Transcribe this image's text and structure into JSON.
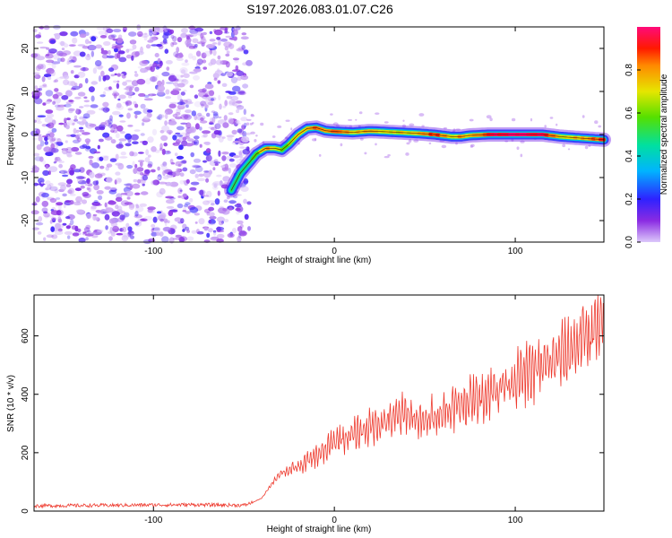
{
  "title": "S197.2026.083.01.07.C26",
  "chart_data": [
    {
      "type": "heatmap",
      "xlabel": "Height of straight line (km)",
      "ylabel": "Frequency (Hz)",
      "xlim": [
        -166,
        149
      ],
      "ylim": [
        -25,
        25
      ],
      "xticks": [
        -100,
        0,
        100
      ],
      "yticks": [
        -20,
        -10,
        0,
        10,
        20
      ],
      "noise_region_x": [
        -166,
        -52
      ],
      "ridge": [
        {
          "x": -57,
          "f": -13,
          "amp": 0.4
        },
        {
          "x": -52,
          "f": -9,
          "amp": 0.42
        },
        {
          "x": -47,
          "f": -6.5,
          "amp": 0.5
        },
        {
          "x": -43,
          "f": -4.5,
          "amp": 0.6
        },
        {
          "x": -38,
          "f": -3.2,
          "amp": 0.85
        },
        {
          "x": -33,
          "f": -3.2,
          "amp": 0.7
        },
        {
          "x": -29,
          "f": -3.6,
          "amp": 0.55
        },
        {
          "x": -25,
          "f": -2.2,
          "amp": 0.6
        },
        {
          "x": -20,
          "f": 0.0,
          "amp": 0.7
        },
        {
          "x": -15,
          "f": 1.4,
          "amp": 0.8
        },
        {
          "x": -10,
          "f": 1.6,
          "amp": 0.85
        },
        {
          "x": -5,
          "f": 0.9,
          "amp": 0.8
        },
        {
          "x": 0,
          "f": 0.7,
          "amp": 0.9
        },
        {
          "x": 10,
          "f": 0.5,
          "amp": 0.7
        },
        {
          "x": 20,
          "f": 0.8,
          "amp": 0.75
        },
        {
          "x": 35,
          "f": 0.5,
          "amp": 0.7
        },
        {
          "x": 45,
          "f": 0.3,
          "amp": 0.7
        },
        {
          "x": 55,
          "f": 0.0,
          "amp": 0.9
        },
        {
          "x": 65,
          "f": -0.5,
          "amp": 0.7
        },
        {
          "x": 70,
          "f": -0.5,
          "amp": 0.8
        },
        {
          "x": 75,
          "f": -0.2,
          "amp": 0.7
        },
        {
          "x": 85,
          "f": 0.0,
          "amp": 0.95
        },
        {
          "x": 100,
          "f": 0.0,
          "amp": 1.0
        },
        {
          "x": 115,
          "f": 0.0,
          "amp": 0.95
        },
        {
          "x": 125,
          "f": -0.5,
          "amp": 0.7
        },
        {
          "x": 135,
          "f": -0.8,
          "amp": 0.75
        },
        {
          "x": 149,
          "f": -1.2,
          "amp": 0.9
        }
      ],
      "colorbar": {
        "label": "Normalized spectral amplitude",
        "range": [
          0,
          1
        ],
        "ticks": [
          "0.0",
          "0.2",
          "0.4",
          "0.6",
          "0.8"
        ]
      }
    },
    {
      "type": "line",
      "xlabel": "Height of straight line (km)",
      "ylabel": "SNR (10 * v/v)",
      "xlim": [
        -166,
        149
      ],
      "ylim": [
        0,
        740
      ],
      "xticks": [
        -100,
        0,
        100
      ],
      "yticks": [
        0,
        200,
        400,
        600
      ],
      "color": "#ee3a2e",
      "series": [
        {
          "name": "SNR",
          "x": [
            -166,
            -120,
            -80,
            -50,
            -45,
            -40,
            -35,
            -30,
            -25,
            -20,
            -15,
            -10,
            -5,
            0,
            10,
            20,
            30,
            40,
            50,
            55,
            60,
            70,
            80,
            90,
            100,
            110,
            120,
            130,
            140,
            149
          ],
          "y": [
            18,
            20,
            22,
            20,
            30,
            45,
            90,
            130,
            140,
            150,
            170,
            190,
            205,
            240,
            260,
            290,
            310,
            335,
            300,
            330,
            340,
            365,
            390,
            420,
            450,
            480,
            510,
            550,
            610,
            630
          ],
          "osc_amplitude_percent": 18
        }
      ]
    }
  ]
}
